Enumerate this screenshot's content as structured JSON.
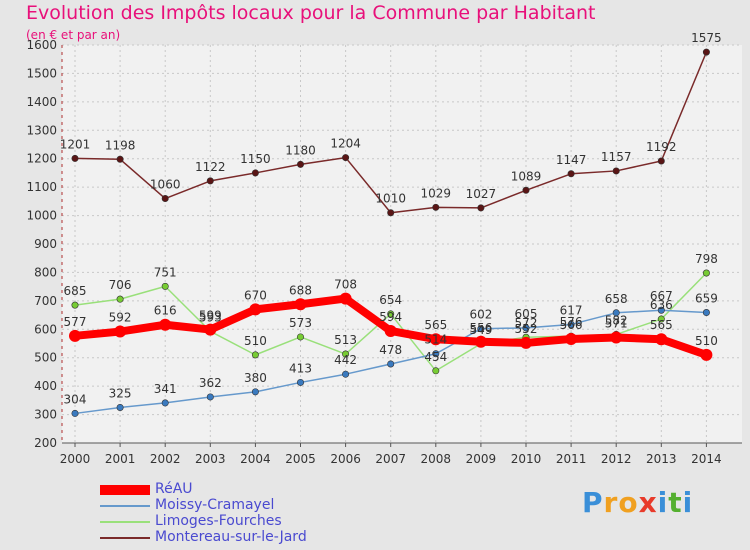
{
  "chart_data": {
    "type": "line",
    "title": "Evolution des Impôts locaux pour la Commune par Habitant",
    "subtitle": "(en € et par an)",
    "xlabel": "",
    "ylabel": "",
    "categories": [
      "2000",
      "2001",
      "2002",
      "2003",
      "2004",
      "2005",
      "2006",
      "2007",
      "2008",
      "2009",
      "2010",
      "2011",
      "2012",
      "2013",
      "2014"
    ],
    "ylim": [
      200,
      1600
    ],
    "yticks": [
      200,
      300,
      400,
      500,
      600,
      700,
      800,
      900,
      1000,
      1100,
      1200,
      1300,
      1400,
      1500,
      1600
    ],
    "grid": true,
    "legend_position": "bottom-left",
    "series": [
      {
        "name": "Montereau-sur-le-Jard",
        "color": "#7a2a2a",
        "point_color": "#5a1515",
        "values": [
          1201,
          1198,
          1060,
          1122,
          1150,
          1180,
          1204,
          1010,
          1029,
          1027,
          1089,
          1147,
          1157,
          1192,
          1575
        ]
      },
      {
        "name": "Limoges-Fourches",
        "color": "#99e07a",
        "point_color": "#77cc33",
        "values": [
          685,
          706,
          751,
          593,
          510,
          573,
          513,
          654,
          454,
          549,
          572,
          576,
          582,
          636,
          798
        ]
      },
      {
        "name": "Moissy-Cramayel",
        "color": "#6699cc",
        "point_color": "#3a7abf",
        "values": [
          304,
          325,
          341,
          362,
          380,
          413,
          442,
          478,
          514,
          602,
          605,
          617,
          658,
          667,
          659
        ]
      },
      {
        "name": "RéAU",
        "color": "#ff0000",
        "point_color": "#ff0000",
        "values": [
          577,
          592,
          616,
          599,
          670,
          688,
          708,
          594,
          565,
          556,
          552,
          566,
          571,
          565,
          510
        ]
      }
    ]
  },
  "legend_order": [
    "RéAU",
    "Moissy-Cramayel",
    "Limoges-Fourches",
    "Montereau-sur-le-Jard"
  ],
  "logo": {
    "letters": [
      "P",
      "r",
      "o",
      "x",
      "i",
      "t",
      "i"
    ],
    "colors": [
      "#3a8fd8",
      "#f0a020",
      "#f0a020",
      "#e83a2a",
      "#3a8fd8",
      "#55b030",
      "#3a8fd8"
    ]
  }
}
